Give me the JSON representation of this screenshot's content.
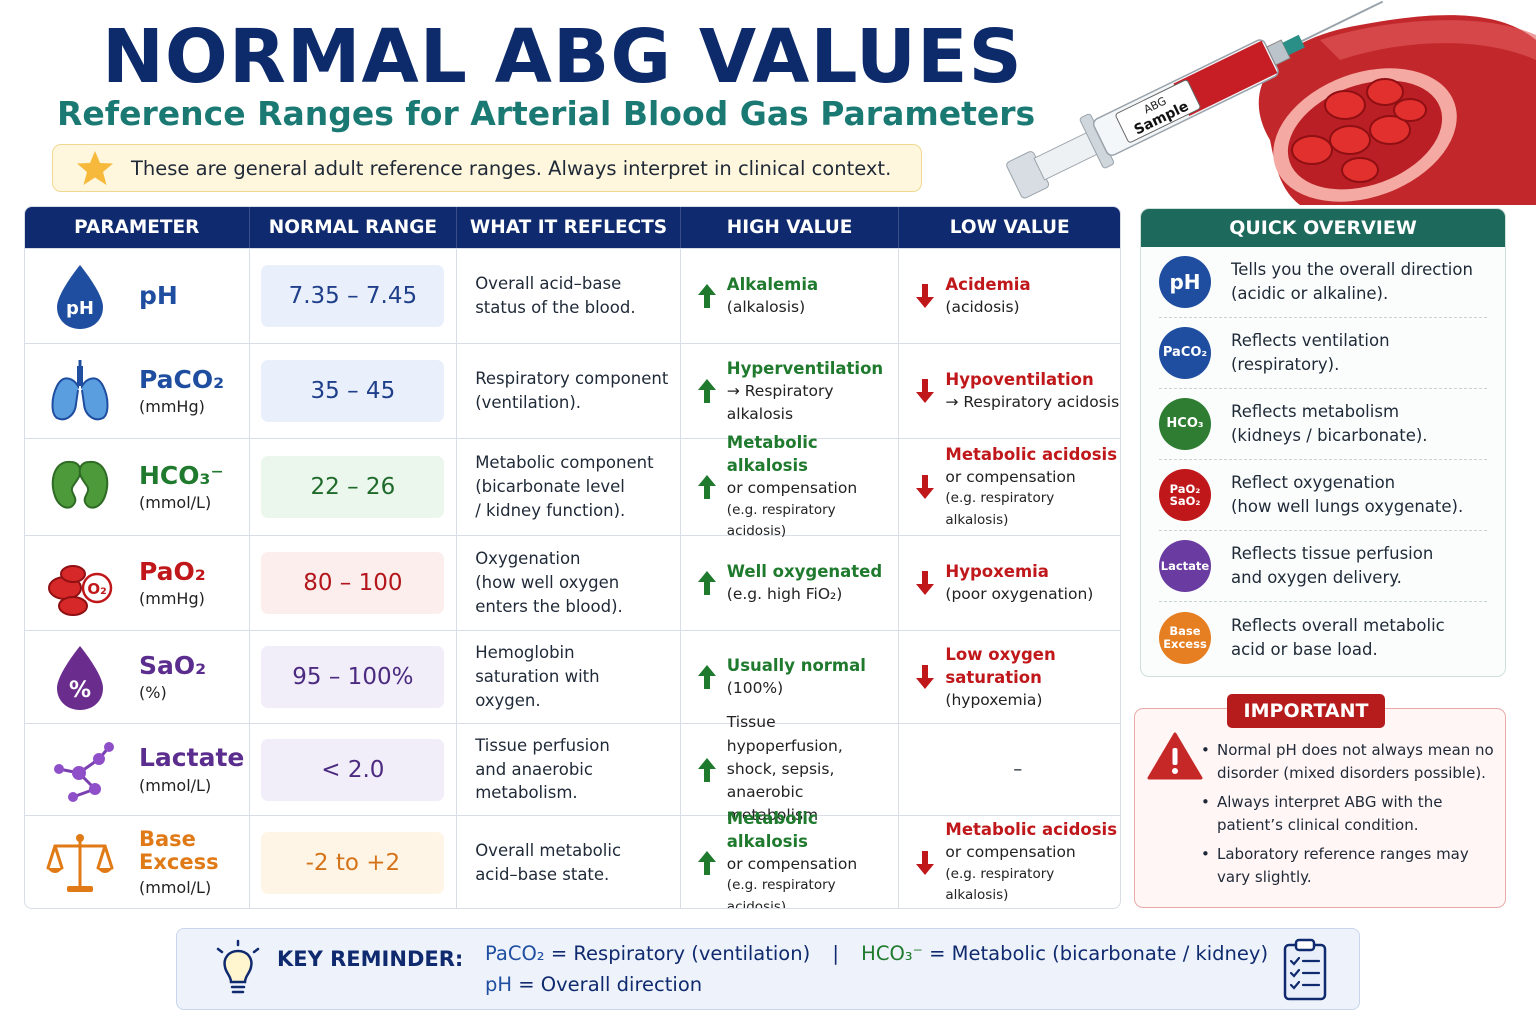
{
  "header": {
    "title": "NORMAL ABG VALUES",
    "subtitle": "Reference Ranges for Arterial Blood Gas Parameters",
    "note": "These are general adult reference ranges. Always interpret in clinical context."
  },
  "illustration": {
    "syringe_label_1": "ABG",
    "syringe_label_2": "Sample"
  },
  "table": {
    "headers": [
      "PARAMETER",
      "NORMAL RANGE",
      "WHAT IT REFLECTS",
      "HIGH VALUE",
      "LOW VALUE"
    ],
    "rows": [
      {
        "name": "pH",
        "unit": "",
        "icon": "drop-icon",
        "icon_text": "pH",
        "color": "#1f4ea0",
        "range": "7.35 – 7.45",
        "range_bg": "#eaf0fb",
        "range_color": "#1f3f8a",
        "reflects": [
          "Overall acid–base",
          "status of the blood."
        ],
        "high": {
          "main": "Alkalemia",
          "sub": "(alkalosis)",
          "ex": ""
        },
        "low": {
          "main": "Acidemia",
          "sub": "(acidosis)",
          "ex": ""
        }
      },
      {
        "name": "PaCO₂",
        "unit": "(mmHg)",
        "icon": "lungs-icon",
        "icon_text": "",
        "color": "#1f4ea0",
        "range": "35 – 45",
        "range_bg": "#eaf0fb",
        "range_color": "#1f3f8a",
        "reflects": [
          "Respiratory component",
          "(ventilation)."
        ],
        "high": {
          "main": "Hyperventilation",
          "sub": "→ Respiratory alkalosis",
          "ex": ""
        },
        "low": {
          "main": "Hypoventilation",
          "sub": "→ Respiratory acidosis",
          "ex": ""
        }
      },
      {
        "name": "HCO₃⁻",
        "unit": "(mmol/L)",
        "icon": "kidneys-icon",
        "icon_text": "",
        "color": "#1f7a2e",
        "range": "22 – 26",
        "range_bg": "#ebf6ec",
        "range_color": "#1f6a2b",
        "reflects": [
          "Metabolic component",
          "(bicarbonate level",
          "/ kidney function)."
        ],
        "high": {
          "main": "Metabolic alkalosis",
          "sub": "or compensation",
          "ex": "(e.g. respiratory acidosis)"
        },
        "low": {
          "main": "Metabolic acidosis",
          "sub": "or compensation",
          "ex": "(e.g. respiratory alkalosis)"
        }
      },
      {
        "name": "PaO₂",
        "unit": "(mmHg)",
        "icon": "red-cells-icon",
        "icon_text": "O₂",
        "color": "#c0171b",
        "range": "80 – 100",
        "range_bg": "#fdeeee",
        "range_color": "#b3161b",
        "reflects": [
          "Oxygenation",
          "(how well oxygen",
          "enters the blood)."
        ],
        "high": {
          "main": "Well oxygenated",
          "sub": "(e.g. high FiO₂)",
          "ex": ""
        },
        "low": {
          "main": "Hypoxemia",
          "sub": "(poor oxygenation)",
          "ex": ""
        }
      },
      {
        "name": "SaO₂",
        "unit": "(%)",
        "icon": "percent-drop-icon",
        "icon_text": "%",
        "color": "#5b2d8e",
        "range": "95 – 100%",
        "range_bg": "#f1edf9",
        "range_color": "#4b2a80",
        "reflects": [
          "Hemoglobin",
          "saturation with",
          "oxygen."
        ],
        "high": {
          "main": "Usually normal",
          "sub": "(100%)",
          "ex": ""
        },
        "low": {
          "main": "Low oxygen saturation",
          "sub": "(hypoxemia)",
          "ex": ""
        }
      },
      {
        "name": "Lactate",
        "unit": "(mmol/L)",
        "icon": "molecule-icon",
        "icon_text": "",
        "color": "#5b2d8e",
        "range": "< 2.0",
        "range_bg": "#f1edf9",
        "range_color": "#4b2a80",
        "reflects": [
          "Tissue perfusion",
          "and anaerobic",
          "metabolism."
        ],
        "high": {
          "main": "",
          "sub": "Tissue hypoperfusion, shock, sepsis, anaerobic metabolism",
          "ex": ""
        },
        "low": {
          "main": "–",
          "sub": "",
          "ex": ""
        }
      },
      {
        "name": "Base Excess",
        "unit": "(mmol/L)",
        "icon": "scale-icon",
        "icon_text": "",
        "color": "#e07a16",
        "range": "-2 to +2",
        "range_bg": "#fff5e6",
        "range_color": "#d4741a",
        "reflects": [
          "Overall metabolic",
          "acid–base state."
        ],
        "high": {
          "main": "Metabolic alkalosis",
          "sub": "or compensation",
          "ex": "(e.g. respiratory acidosis)"
        },
        "low": {
          "main": "Metabolic acidosis",
          "sub": "or compensation",
          "ex": "(e.g. respiratory alkalosis)"
        }
      }
    ]
  },
  "overview": {
    "title": "QUICK OVERVIEW",
    "items": [
      {
        "badge": "pH",
        "color": "#1f4ea0",
        "text": [
          "Tells you the overall direction",
          "(acidic or alkaline)."
        ]
      },
      {
        "badge": "PaCO₂",
        "color": "#1f4ea0",
        "text": [
          "Reflects ventilation",
          "(respiratory)."
        ]
      },
      {
        "badge": "HCO₃",
        "color": "#2e7d32",
        "text": [
          "Reflects metabolism",
          "(kidneys / bicarbonate)."
        ]
      },
      {
        "badge": "PaO₂ SaO₂",
        "color": "#c0171b",
        "text": [
          "Reflect oxygenation",
          "(how well lungs oxygenate)."
        ]
      },
      {
        "badge": "Lactate",
        "color": "#6a3ba0",
        "text": [
          "Reflects tissue perfusion",
          "and oxygen delivery."
        ]
      },
      {
        "badge": "Base Excess",
        "color": "#e67e22",
        "text": [
          "Reflects overall metabolic",
          "acid or base load."
        ]
      }
    ]
  },
  "important": {
    "title": "IMPORTANT",
    "items": [
      "Normal pH does not always mean no disorder (mixed disorders possible).",
      "Always interpret ABG with the patient’s clinical condition.",
      "Laboratory reference ranges may vary slightly."
    ]
  },
  "reminder": {
    "label": "KEY REMINDER:",
    "paco2": "PaCO₂",
    "paco2_text": "= Respiratory (ventilation)",
    "sep": "|",
    "hco3": "HCO₃⁻",
    "hco3_text": "= Metabolic (bicarbonate / kidney)",
    "ph": "pH",
    "ph_text": "= Overall direction"
  }
}
